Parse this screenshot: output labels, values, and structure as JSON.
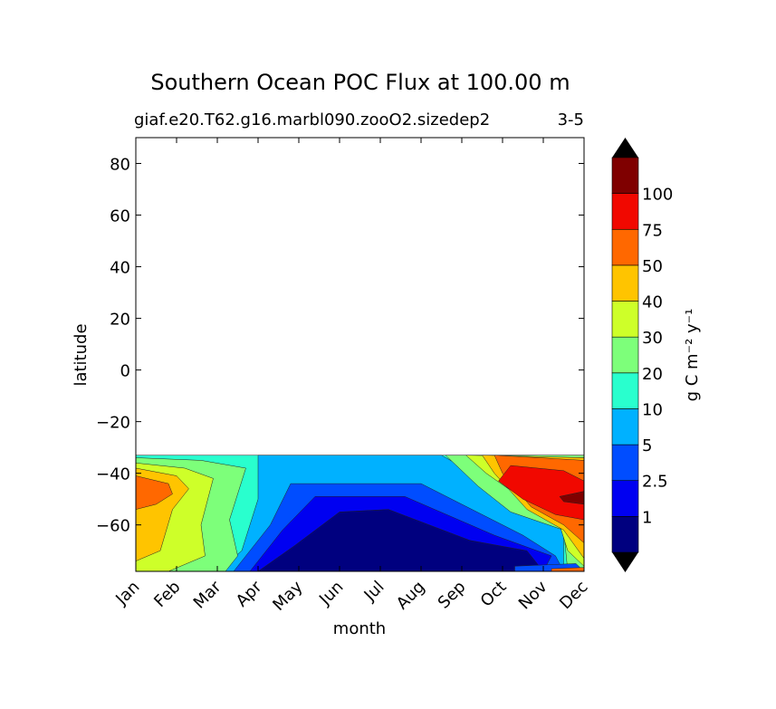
{
  "chart_data": {
    "type": "contour",
    "title": "Southern Ocean POC Flux at 100.00 m",
    "subtitle_left": "giaf.e20.T62.g16.marbl090.zooO2.sizedep2",
    "subtitle_right": "3-5",
    "xlabel": "month",
    "ylabel": "latitude",
    "x_ticks": [
      "Jan",
      "Feb",
      "Mar",
      "Apr",
      "May",
      "Jun",
      "Jul",
      "Aug",
      "Sep",
      "Oct",
      "Nov",
      "Dec"
    ],
    "y_ticks": [
      80,
      60,
      40,
      20,
      0,
      -20,
      -40,
      -60
    ],
    "y_tick_labels": [
      "80",
      "60",
      "40",
      "20",
      "0",
      "−20",
      "−40",
      "−60"
    ],
    "ylim": [
      -78,
      90
    ],
    "data_lat_range": [
      -78,
      -33
    ],
    "colorbar": {
      "label": "g C m⁻² y⁻¹",
      "levels": [
        "1",
        "2.5",
        "5",
        "10",
        "20",
        "30",
        "40",
        "50",
        "75",
        "100"
      ],
      "colors": [
        "#00007f",
        "#0000f1",
        "#004dff",
        "#00b1ff",
        "#29ffce",
        "#7dff7a",
        "#ceff29",
        "#ffc400",
        "#ff6800",
        "#f10800",
        "#7f0000"
      ],
      "extend": "both"
    },
    "regions": [
      {
        "name": "background",
        "level": 4,
        "points": [
          [
            0,
            -33
          ],
          [
            11,
            -33
          ],
          [
            11,
            -78
          ],
          [
            0,
            -78
          ]
        ]
      },
      {
        "name": "low-flux-5",
        "level": 3,
        "points": [
          [
            3,
            -33
          ],
          [
            7.5,
            -33
          ],
          [
            10.5,
            -60
          ],
          [
            10.5,
            -78
          ],
          [
            2,
            -78
          ],
          [
            2.6,
            -70
          ],
          [
            3,
            -50
          ]
        ]
      },
      {
        "name": "low-flux-2.5",
        "level": 2,
        "points": [
          [
            3.8,
            -44
          ],
          [
            7,
            -44
          ],
          [
            9.5,
            -64
          ],
          [
            10.3,
            -72
          ],
          [
            10.5,
            -78
          ],
          [
            2.4,
            -78
          ],
          [
            3.3,
            -60
          ]
        ]
      },
      {
        "name": "low-flux-1",
        "level": 1,
        "points": [
          [
            4.4,
            -49
          ],
          [
            6.6,
            -49
          ],
          [
            8.8,
            -64
          ],
          [
            10.2,
            -72
          ],
          [
            10,
            -78
          ],
          [
            2.8,
            -78
          ],
          [
            3.6,
            -62
          ]
        ]
      },
      {
        "name": "low-flux-lt1",
        "level": 0,
        "points": [
          [
            5,
            -55
          ],
          [
            6.2,
            -54
          ],
          [
            8.2,
            -66
          ],
          [
            9.6,
            -70
          ],
          [
            10,
            -78
          ],
          [
            3,
            -78
          ],
          [
            3.9,
            -68
          ]
        ]
      },
      {
        "name": "west-20",
        "level": 5,
        "points": [
          [
            0,
            -34
          ],
          [
            1.6,
            -35
          ],
          [
            2.7,
            -38
          ],
          [
            2.3,
            -58
          ],
          [
            2.5,
            -72
          ],
          [
            2.2,
            -78
          ],
          [
            0,
            -78
          ]
        ]
      },
      {
        "name": "west-30",
        "level": 6,
        "points": [
          [
            0,
            -36
          ],
          [
            1.2,
            -38
          ],
          [
            1.9,
            -42
          ],
          [
            1.6,
            -60
          ],
          [
            1.7,
            -72
          ],
          [
            0.8,
            -78
          ],
          [
            0,
            -78
          ]
        ]
      },
      {
        "name": "west-40",
        "level": 7,
        "points": [
          [
            0,
            -38
          ],
          [
            1,
            -41
          ],
          [
            1.3,
            -46
          ],
          [
            0.9,
            -54
          ],
          [
            0.6,
            -70
          ],
          [
            0,
            -74
          ]
        ]
      },
      {
        "name": "west-50",
        "level": 8,
        "points": [
          [
            0,
            -41
          ],
          [
            0.8,
            -44
          ],
          [
            0.9,
            -48
          ],
          [
            0.5,
            -52
          ],
          [
            0,
            -54
          ]
        ]
      },
      {
        "name": "east-20",
        "level": 5,
        "points": [
          [
            7.6,
            -33
          ],
          [
            11,
            -33
          ],
          [
            11,
            -78
          ],
          [
            10.6,
            -78
          ],
          [
            10.5,
            -62
          ],
          [
            9.2,
            -55
          ],
          [
            8.4,
            -45
          ]
        ]
      },
      {
        "name": "east-30",
        "level": 6,
        "points": [
          [
            8.1,
            -33
          ],
          [
            11,
            -34
          ],
          [
            11,
            -76
          ],
          [
            10.6,
            -70
          ],
          [
            10.4,
            -60
          ],
          [
            9.5,
            -50
          ],
          [
            8.6,
            -40
          ]
        ]
      },
      {
        "name": "east-40",
        "level": 7,
        "points": [
          [
            8.5,
            -33
          ],
          [
            11,
            -34
          ],
          [
            11,
            -73
          ],
          [
            10.5,
            -62
          ],
          [
            9.6,
            -54
          ],
          [
            8.8,
            -40
          ]
        ]
      },
      {
        "name": "east-50",
        "level": 8,
        "points": [
          [
            8.8,
            -33
          ],
          [
            11,
            -35
          ],
          [
            11,
            -67
          ],
          [
            10.5,
            -60
          ],
          [
            9.7,
            -53
          ],
          [
            9,
            -40
          ]
        ]
      },
      {
        "name": "east-75",
        "level": 9,
        "points": [
          [
            9.2,
            -37
          ],
          [
            10.5,
            -39
          ],
          [
            11,
            -43
          ],
          [
            11,
            -58
          ],
          [
            10.3,
            -56
          ],
          [
            9.5,
            -50
          ],
          [
            8.9,
            -43
          ]
        ]
      },
      {
        "name": "east-100",
        "level": 10,
        "points": [
          [
            10.4,
            -49
          ],
          [
            11,
            -47
          ],
          [
            11,
            -52
          ],
          [
            10.5,
            -51
          ]
        ]
      },
      {
        "name": "south-edge-blue",
        "level": 2,
        "points": [
          [
            9.3,
            -76
          ],
          [
            10.8,
            -75
          ],
          [
            11,
            -78
          ],
          [
            9.3,
            -78
          ]
        ]
      },
      {
        "name": "south-edge-red",
        "level": 8,
        "points": [
          [
            10.2,
            -77
          ],
          [
            11,
            -76.5
          ],
          [
            11,
            -78
          ],
          [
            10.2,
            -78
          ]
        ]
      }
    ]
  }
}
